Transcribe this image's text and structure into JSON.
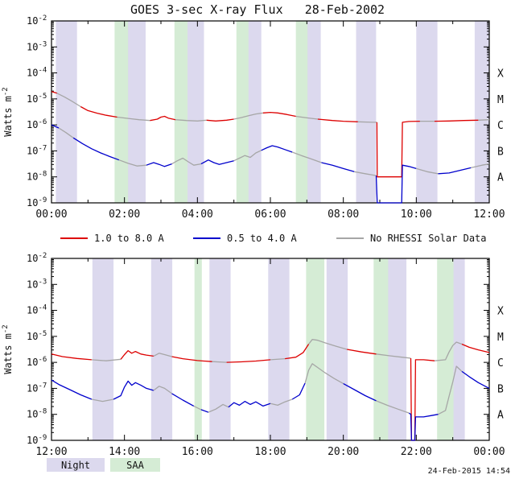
{
  "title": "GOES 3-sec X-ray Flux   28-Feb-2002",
  "timestamp": "24-Feb-2015 14:54",
  "legend": {
    "red": "1.0 to 8.0 A",
    "blue": "0.5 to 4.0 A",
    "gray": "No RHESSI Solar Data",
    "night": "Night",
    "saa": "SAA"
  },
  "colors": {
    "red": "#dd0000",
    "blue": "#0000cc",
    "gray": "#a6a6a6",
    "night": "#dcd9ee",
    "saa": "#d5ecd5",
    "axis": "#000000"
  },
  "chart_data": [
    {
      "type": "line",
      "panel": "00:00-12:00",
      "ylabel": {
        "base": "Watts m",
        "exp": "-2"
      },
      "x_range": [
        0,
        12
      ],
      "x_major_ticks": [
        0,
        2,
        4,
        6,
        8,
        10,
        12
      ],
      "x_tick_labels": [
        "00:00",
        "02:00",
        "04:00",
        "06:00",
        "08:00",
        "10:00",
        "12:00"
      ],
      "y_log_range": [
        -9,
        -2
      ],
      "y_tick_exponents": [
        -2,
        -3,
        -4,
        -5,
        -6,
        -7,
        -8,
        -9
      ],
      "flare_classes": [
        {
          "label": "X",
          "log": -4
        },
        {
          "label": "M",
          "log": -5
        },
        {
          "label": "C",
          "log": -6
        },
        {
          "label": "B",
          "log": -7
        },
        {
          "label": "A",
          "log": -8
        }
      ],
      "bands": {
        "night": [
          [
            0.12,
            0.7
          ],
          [
            2.0,
            2.58
          ],
          [
            3.6,
            4.18
          ],
          [
            5.17,
            5.75
          ],
          [
            6.8,
            7.38
          ],
          [
            8.35,
            8.9
          ],
          [
            10.0,
            10.58
          ],
          [
            11.6,
            12.0
          ]
        ],
        "saa": [
          [
            1.73,
            2.1
          ],
          [
            3.37,
            3.73
          ],
          [
            5.07,
            5.4
          ],
          [
            6.7,
            7.02
          ]
        ]
      },
      "series": [
        {
          "name": "1.0 to 8.0 A",
          "color_key": "red",
          "points": [
            [
              0,
              -4.72
            ],
            [
              0.15,
              -4.78
            ],
            [
              0.35,
              -4.92
            ],
            [
              0.55,
              -5.08
            ],
            [
              0.8,
              -5.3
            ],
            [
              1.0,
              -5.45
            ],
            [
              1.25,
              -5.55
            ],
            [
              1.5,
              -5.63
            ],
            [
              1.8,
              -5.7
            ],
            [
              2.1,
              -5.75
            ],
            [
              2.4,
              -5.8
            ],
            [
              2.7,
              -5.83
            ],
            [
              2.9,
              -5.78
            ],
            [
              3.0,
              -5.7
            ],
            [
              3.1,
              -5.67
            ],
            [
              3.2,
              -5.74
            ],
            [
              3.4,
              -5.8
            ],
            [
              3.7,
              -5.83
            ],
            [
              4.0,
              -5.85
            ],
            [
              4.25,
              -5.82
            ],
            [
              4.5,
              -5.85
            ],
            [
              4.8,
              -5.82
            ],
            [
              5.0,
              -5.78
            ],
            [
              5.2,
              -5.72
            ],
            [
              5.4,
              -5.65
            ],
            [
              5.6,
              -5.58
            ],
            [
              5.8,
              -5.54
            ],
            [
              6.0,
              -5.52
            ],
            [
              6.2,
              -5.54
            ],
            [
              6.45,
              -5.6
            ],
            [
              6.7,
              -5.67
            ],
            [
              7.0,
              -5.73
            ],
            [
              7.3,
              -5.78
            ],
            [
              7.7,
              -5.83
            ],
            [
              8.0,
              -5.86
            ],
            [
              8.4,
              -5.88
            ],
            [
              8.8,
              -5.9
            ],
            [
              8.92,
              -5.9
            ],
            [
              8.93,
              -8.0
            ],
            [
              9.6,
              -8.0
            ],
            [
              9.62,
              -5.9
            ],
            [
              9.8,
              -5.87
            ],
            [
              10.1,
              -5.86
            ],
            [
              10.5,
              -5.86
            ],
            [
              10.9,
              -5.85
            ],
            [
              11.3,
              -5.83
            ],
            [
              11.7,
              -5.82
            ],
            [
              12,
              -5.8
            ]
          ]
        },
        {
          "name": "0.5 to 4.0 A",
          "color_key": "blue",
          "points": [
            [
              0,
              -6.0
            ],
            [
              0.2,
              -6.12
            ],
            [
              0.4,
              -6.3
            ],
            [
              0.6,
              -6.5
            ],
            [
              0.85,
              -6.72
            ],
            [
              1.1,
              -6.92
            ],
            [
              1.35,
              -7.08
            ],
            [
              1.6,
              -7.22
            ],
            [
              1.85,
              -7.35
            ],
            [
              2.1,
              -7.48
            ],
            [
              2.35,
              -7.58
            ],
            [
              2.6,
              -7.55
            ],
            [
              2.8,
              -7.45
            ],
            [
              2.95,
              -7.52
            ],
            [
              3.1,
              -7.6
            ],
            [
              3.3,
              -7.5
            ],
            [
              3.45,
              -7.38
            ],
            [
              3.6,
              -7.28
            ],
            [
              3.75,
              -7.42
            ],
            [
              3.9,
              -7.55
            ],
            [
              4.1,
              -7.5
            ],
            [
              4.3,
              -7.35
            ],
            [
              4.45,
              -7.45
            ],
            [
              4.6,
              -7.52
            ],
            [
              4.8,
              -7.45
            ],
            [
              5.0,
              -7.38
            ],
            [
              5.15,
              -7.28
            ],
            [
              5.3,
              -7.18
            ],
            [
              5.45,
              -7.25
            ],
            [
              5.6,
              -7.08
            ],
            [
              5.75,
              -6.98
            ],
            [
              5.9,
              -6.88
            ],
            [
              6.05,
              -6.8
            ],
            [
              6.2,
              -6.85
            ],
            [
              6.4,
              -6.95
            ],
            [
              6.6,
              -7.05
            ],
            [
              6.85,
              -7.18
            ],
            [
              7.1,
              -7.3
            ],
            [
              7.4,
              -7.45
            ],
            [
              7.7,
              -7.55
            ],
            [
              8.0,
              -7.68
            ],
            [
              8.3,
              -7.8
            ],
            [
              8.6,
              -7.88
            ],
            [
              8.9,
              -7.95
            ],
            [
              8.93,
              -9.0
            ],
            [
              9.6,
              -9.0
            ],
            [
              9.62,
              -7.55
            ],
            [
              9.8,
              -7.6
            ],
            [
              10.0,
              -7.68
            ],
            [
              10.3,
              -7.8
            ],
            [
              10.6,
              -7.88
            ],
            [
              10.9,
              -7.85
            ],
            [
              11.2,
              -7.75
            ],
            [
              11.5,
              -7.65
            ],
            [
              11.8,
              -7.55
            ],
            [
              12,
              -7.5
            ]
          ]
        }
      ]
    },
    {
      "type": "line",
      "panel": "12:00-24:00",
      "ylabel": {
        "base": "Watts m",
        "exp": "-2"
      },
      "x_range": [
        12,
        24
      ],
      "x_major_ticks": [
        12,
        14,
        16,
        18,
        20,
        22,
        24
      ],
      "x_tick_labels": [
        "12:00",
        "14:00",
        "16:00",
        "18:00",
        "20:00",
        "22:00",
        "00:00"
      ],
      "y_log_range": [
        -9,
        -2
      ],
      "y_tick_exponents": [
        -2,
        -3,
        -4,
        -5,
        -6,
        -7,
        -8,
        -9
      ],
      "flare_classes": [
        {
          "label": "X",
          "log": -4
        },
        {
          "label": "M",
          "log": -5
        },
        {
          "label": "C",
          "log": -6
        },
        {
          "label": "B",
          "log": -7
        },
        {
          "label": "A",
          "log": -8
        }
      ],
      "bands": {
        "night": [
          [
            13.12,
            13.7
          ],
          [
            14.73,
            15.31
          ],
          [
            16.33,
            16.91
          ],
          [
            17.94,
            18.52
          ],
          [
            19.54,
            20.12
          ],
          [
            21.15,
            21.73
          ],
          [
            22.75,
            23.33
          ]
        ],
        "saa": [
          [
            15.92,
            16.12
          ],
          [
            18.98,
            19.48
          ],
          [
            20.83,
            21.23
          ],
          [
            22.57,
            23.02
          ]
        ]
      },
      "series": [
        {
          "name": "1.0 to 8.0 A",
          "color_key": "red",
          "points": [
            [
              12,
              -5.68
            ],
            [
              12.3,
              -5.78
            ],
            [
              12.7,
              -5.85
            ],
            [
              13.1,
              -5.9
            ],
            [
              13.5,
              -5.94
            ],
            [
              13.9,
              -5.88
            ],
            [
              14.0,
              -5.7
            ],
            [
              14.1,
              -5.55
            ],
            [
              14.2,
              -5.65
            ],
            [
              14.3,
              -5.58
            ],
            [
              14.45,
              -5.68
            ],
            [
              14.6,
              -5.72
            ],
            [
              14.8,
              -5.76
            ],
            [
              14.95,
              -5.65
            ],
            [
              15.1,
              -5.7
            ],
            [
              15.3,
              -5.78
            ],
            [
              15.6,
              -5.86
            ],
            [
              16.0,
              -5.93
            ],
            [
              16.4,
              -5.97
            ],
            [
              16.8,
              -6.0
            ],
            [
              17.2,
              -5.98
            ],
            [
              17.6,
              -5.95
            ],
            [
              18.0,
              -5.9
            ],
            [
              18.4,
              -5.86
            ],
            [
              18.7,
              -5.8
            ],
            [
              18.9,
              -5.62
            ],
            [
              19.05,
              -5.3
            ],
            [
              19.15,
              -5.12
            ],
            [
              19.3,
              -5.15
            ],
            [
              19.5,
              -5.25
            ],
            [
              19.8,
              -5.38
            ],
            [
              20.1,
              -5.5
            ],
            [
              20.5,
              -5.6
            ],
            [
              20.9,
              -5.68
            ],
            [
              21.3,
              -5.75
            ],
            [
              21.6,
              -5.8
            ],
            [
              21.85,
              -5.84
            ],
            [
              21.87,
              -9.0
            ],
            [
              21.96,
              -9.0
            ],
            [
              21.98,
              -5.9
            ],
            [
              22.2,
              -5.9
            ],
            [
              22.5,
              -5.94
            ],
            [
              22.8,
              -5.9
            ],
            [
              22.9,
              -5.6
            ],
            [
              23.0,
              -5.35
            ],
            [
              23.1,
              -5.22
            ],
            [
              23.25,
              -5.3
            ],
            [
              23.45,
              -5.42
            ],
            [
              23.7,
              -5.52
            ],
            [
              24,
              -5.62
            ]
          ]
        },
        {
          "name": "0.5 to 4.0 A",
          "color_key": "blue",
          "points": [
            [
              12,
              -6.68
            ],
            [
              12.2,
              -6.85
            ],
            [
              12.5,
              -7.05
            ],
            [
              12.8,
              -7.25
            ],
            [
              13.1,
              -7.42
            ],
            [
              13.4,
              -7.5
            ],
            [
              13.7,
              -7.42
            ],
            [
              13.9,
              -7.28
            ],
            [
              14.0,
              -6.95
            ],
            [
              14.1,
              -6.72
            ],
            [
              14.2,
              -6.88
            ],
            [
              14.3,
              -6.78
            ],
            [
              14.45,
              -6.88
            ],
            [
              14.6,
              -7.0
            ],
            [
              14.8,
              -7.08
            ],
            [
              14.95,
              -6.92
            ],
            [
              15.1,
              -7.0
            ],
            [
              15.3,
              -7.2
            ],
            [
              15.6,
              -7.45
            ],
            [
              15.9,
              -7.68
            ],
            [
              16.1,
              -7.82
            ],
            [
              16.3,
              -7.92
            ],
            [
              16.5,
              -7.8
            ],
            [
              16.7,
              -7.62
            ],
            [
              16.85,
              -7.72
            ],
            [
              17.0,
              -7.55
            ],
            [
              17.15,
              -7.65
            ],
            [
              17.3,
              -7.5
            ],
            [
              17.45,
              -7.62
            ],
            [
              17.6,
              -7.52
            ],
            [
              17.8,
              -7.68
            ],
            [
              18.0,
              -7.58
            ],
            [
              18.2,
              -7.65
            ],
            [
              18.4,
              -7.52
            ],
            [
              18.6,
              -7.42
            ],
            [
              18.8,
              -7.25
            ],
            [
              18.95,
              -6.8
            ],
            [
              19.05,
              -6.3
            ],
            [
              19.15,
              -6.05
            ],
            [
              19.3,
              -6.2
            ],
            [
              19.5,
              -6.4
            ],
            [
              19.75,
              -6.62
            ],
            [
              20.0,
              -6.82
            ],
            [
              20.3,
              -7.05
            ],
            [
              20.6,
              -7.28
            ],
            [
              20.9,
              -7.48
            ],
            [
              21.2,
              -7.65
            ],
            [
              21.5,
              -7.8
            ],
            [
              21.8,
              -7.95
            ],
            [
              21.85,
              -8.0
            ],
            [
              21.87,
              -9.0
            ],
            [
              21.96,
              -9.0
            ],
            [
              21.98,
              -8.1
            ],
            [
              22.2,
              -8.1
            ],
            [
              22.4,
              -8.05
            ],
            [
              22.6,
              -8.0
            ],
            [
              22.8,
              -7.85
            ],
            [
              22.9,
              -7.3
            ],
            [
              23.0,
              -6.75
            ],
            [
              23.1,
              -6.15
            ],
            [
              23.25,
              -6.35
            ],
            [
              23.45,
              -6.55
            ],
            [
              23.7,
              -6.78
            ],
            [
              24,
              -7.0
            ]
          ]
        }
      ]
    }
  ]
}
